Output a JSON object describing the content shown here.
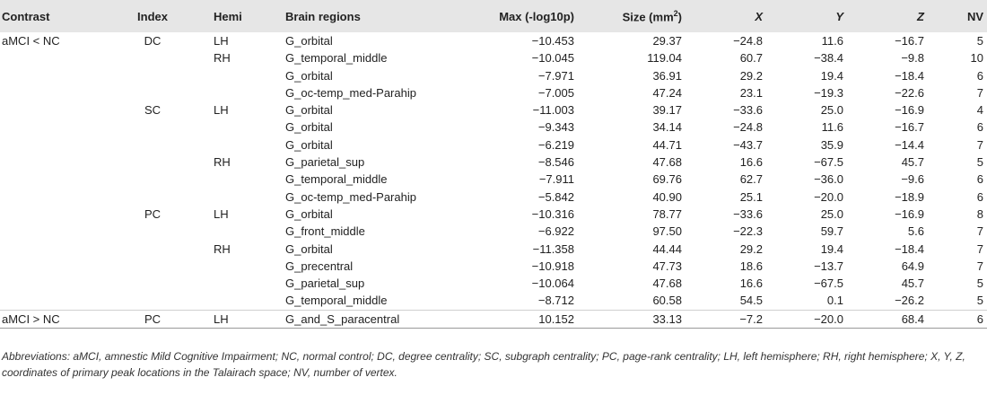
{
  "table": {
    "headers": {
      "contrast": "Contrast",
      "index": "Index",
      "hemi": "Hemi",
      "region": "Brain regions",
      "max": "Max (-log10p)",
      "size_prefix": "Size (mm",
      "size_sup": "2",
      "size_suffix": ")",
      "x": "X",
      "y": "Y",
      "z": "Z",
      "nv": "NV"
    },
    "rows": [
      {
        "contrast": "aMCI < NC",
        "index": "DC",
        "hemi": "LH",
        "region": "G_orbital",
        "max": "−10.453",
        "size": "29.37",
        "x": "−24.8",
        "y": "11.6",
        "z": "−16.7",
        "nv": "5"
      },
      {
        "contrast": "",
        "index": "",
        "hemi": "RH",
        "region": "G_temporal_middle",
        "max": "−10.045",
        "size": "119.04",
        "x": "60.7",
        "y": "−38.4",
        "z": "−9.8",
        "nv": "10"
      },
      {
        "contrast": "",
        "index": "",
        "hemi": "",
        "region": "G_orbital",
        "max": "−7.971",
        "size": "36.91",
        "x": "29.2",
        "y": "19.4",
        "z": "−18.4",
        "nv": "6"
      },
      {
        "contrast": "",
        "index": "",
        "hemi": "",
        "region": "G_oc-temp_med-Parahip",
        "max": "−7.005",
        "size": "47.24",
        "x": "23.1",
        "y": "−19.3",
        "z": "−22.6",
        "nv": "7"
      },
      {
        "contrast": "",
        "index": "SC",
        "hemi": "LH",
        "region": "G_orbital",
        "max": "−11.003",
        "size": "39.17",
        "x": "−33.6",
        "y": "25.0",
        "z": "−16.9",
        "nv": "4"
      },
      {
        "contrast": "",
        "index": "",
        "hemi": "",
        "region": "G_orbital",
        "max": "−9.343",
        "size": "34.14",
        "x": "−24.8",
        "y": "11.6",
        "z": "−16.7",
        "nv": "6"
      },
      {
        "contrast": "",
        "index": "",
        "hemi": "",
        "region": "G_orbital",
        "max": "−6.219",
        "size": "44.71",
        "x": "−43.7",
        "y": "35.9",
        "z": "−14.4",
        "nv": "7"
      },
      {
        "contrast": "",
        "index": "",
        "hemi": "RH",
        "region": "G_parietal_sup",
        "max": "−8.546",
        "size": "47.68",
        "x": "16.6",
        "y": "−67.5",
        "z": "45.7",
        "nv": "5"
      },
      {
        "contrast": "",
        "index": "",
        "hemi": "",
        "region": "G_temporal_middle",
        "max": "−7.911",
        "size": "69.76",
        "x": "62.7",
        "y": "−36.0",
        "z": "−9.6",
        "nv": "6"
      },
      {
        "contrast": "",
        "index": "",
        "hemi": "",
        "region": "G_oc-temp_med-Parahip",
        "max": "−5.842",
        "size": "40.90",
        "x": "25.1",
        "y": "−20.0",
        "z": "−18.9",
        "nv": "6"
      },
      {
        "contrast": "",
        "index": "PC",
        "hemi": "LH",
        "region": "G_orbital",
        "max": "−10.316",
        "size": "78.77",
        "x": "−33.6",
        "y": "25.0",
        "z": "−16.9",
        "nv": "8"
      },
      {
        "contrast": "",
        "index": "",
        "hemi": "",
        "region": "G_front_middle",
        "max": "−6.922",
        "size": "97.50",
        "x": "−22.3",
        "y": "59.7",
        "z": "5.6",
        "nv": "7"
      },
      {
        "contrast": "",
        "index": "",
        "hemi": "RH",
        "region": "G_orbital",
        "max": "−11.358",
        "size": "44.44",
        "x": "29.2",
        "y": "19.4",
        "z": "−18.4",
        "nv": "7"
      },
      {
        "contrast": "",
        "index": "",
        "hemi": "",
        "region": "G_precentral",
        "max": "−10.918",
        "size": "47.73",
        "x": "18.6",
        "y": "−13.7",
        "z": "64.9",
        "nv": "7"
      },
      {
        "contrast": "",
        "index": "",
        "hemi": "",
        "region": "G_parietal_sup",
        "max": "−10.064",
        "size": "47.68",
        "x": "16.6",
        "y": "−67.5",
        "z": "45.7",
        "nv": "5"
      },
      {
        "contrast": "",
        "index": "",
        "hemi": "",
        "region": "G_temporal_middle",
        "max": "−8.712",
        "size": "60.58",
        "x": "54.5",
        "y": "0.1",
        "z": "−26.2",
        "nv": "5"
      },
      {
        "contrast": "aMCI > NC",
        "index": "PC",
        "hemi": "LH",
        "region": "G_and_S_paracentral",
        "max": "10.152",
        "size": "33.13",
        "x": "−7.2",
        "y": "−20.0",
        "z": "68.4",
        "nv": "6"
      }
    ]
  },
  "footnote": "Abbreviations: aMCI, amnestic Mild Cognitive Impairment; NC, normal control; DC, degree centrality; SC, subgraph centrality; PC, page-rank centrality; LH, left hemisphere; RH, right hemisphere; X, Y, Z, coordinates of primary peak locations in the Talairach space; NV, number of vertex."
}
